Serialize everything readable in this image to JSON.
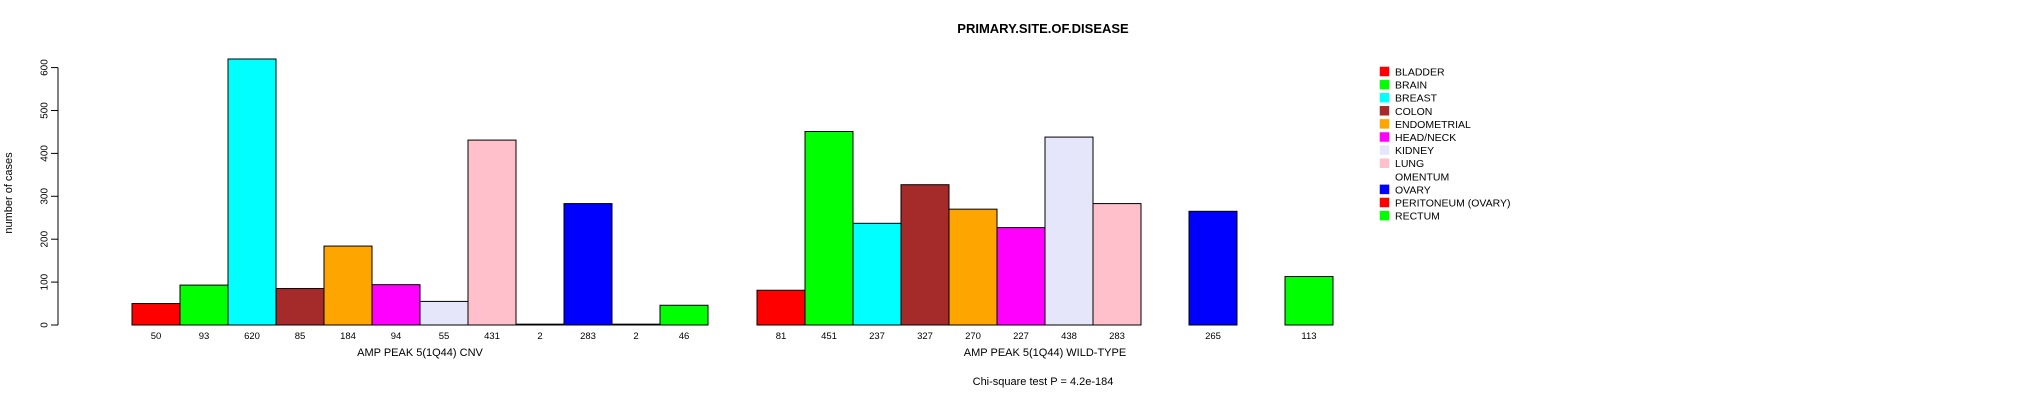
{
  "chart_data": {
    "type": "bar",
    "title": "PRIMARY.SITE.OF.DISEASE",
    "ylabel": "number of cases",
    "ylim": [
      0,
      620
    ],
    "yticks": [
      0,
      100,
      200,
      300,
      400,
      500,
      600
    ],
    "footnote": "Chi-square test P = 4.2e-184",
    "legend_position": "right",
    "categories": [
      "BLADDER",
      "BRAIN",
      "BREAST",
      "COLON",
      "ENDOMETRIAL",
      "HEAD/NECK",
      "KIDNEY",
      "LUNG",
      "OMENTUM",
      "OVARY",
      "PERITONEUM (OVARY)",
      "RECTUM"
    ],
    "colors": [
      "#ff0000",
      "#00ff00",
      "#00ffff",
      "#a52a2a",
      "#ffa500",
      "#ff00ff",
      "#e6e6fa",
      "#ffc0cb",
      "#ffffff",
      "#0000ff",
      "#ff0000",
      "#00ff00"
    ],
    "groups": [
      {
        "xlabel": "AMP PEAK  5(1Q44) CNV",
        "values": [
          50,
          93,
          620,
          85,
          184,
          94,
          55,
          431,
          2,
          283,
          2,
          46
        ],
        "labels": [
          "50",
          "93",
          "620",
          "85",
          "184",
          "94",
          "55",
          "431",
          "2",
          "283",
          "2",
          "46"
        ]
      },
      {
        "xlabel": "AMP PEAK  5(1Q44) WILD-TYPE",
        "values": [
          81,
          451,
          237,
          327,
          270,
          227,
          438,
          283,
          0,
          265,
          0,
          113
        ],
        "labels": [
          "81",
          "451",
          "237",
          "327",
          "270",
          "227",
          "438",
          "283",
          "",
          "265",
          "",
          "113"
        ]
      }
    ]
  }
}
